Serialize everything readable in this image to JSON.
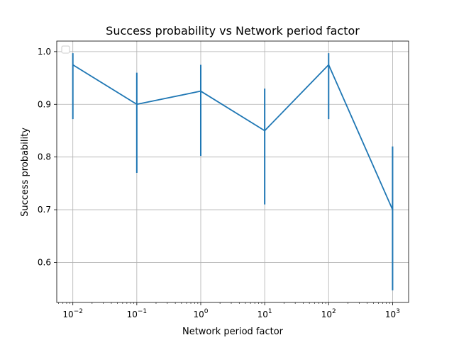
{
  "chart_data": {
    "type": "line",
    "title": "Success probability vs Network period factor",
    "xlabel": "Network period factor",
    "ylabel": "Success probability",
    "xscale": "log",
    "xlim": [
      0.0056,
      1780
    ],
    "ylim": [
      0.524,
      1.02
    ],
    "grid": true,
    "legend": {
      "placement": "top-left",
      "entries": []
    },
    "x_ticks": [
      {
        "base": "10",
        "exp": "−2",
        "value": 0.01
      },
      {
        "base": "10",
        "exp": "−1",
        "value": 0.1
      },
      {
        "base": "10",
        "exp": "0",
        "value": 1
      },
      {
        "base": "10",
        "exp": "1",
        "value": 10
      },
      {
        "base": "10",
        "exp": "2",
        "value": 100
      },
      {
        "base": "10",
        "exp": "3",
        "value": 1000
      }
    ],
    "y_ticks": [
      "0.6",
      "0.7",
      "0.8",
      "0.9",
      "1.0"
    ],
    "color": "#1f77b4",
    "series": [
      {
        "x": [
          0.01,
          0.1,
          1,
          10,
          100,
          1000
        ],
        "y": [
          0.975,
          0.9,
          0.925,
          0.85,
          0.975,
          0.7
        ],
        "err_low": [
          0.872,
          0.77,
          0.802,
          0.71,
          0.872,
          0.547
        ],
        "err_high": [
          0.997,
          0.96,
          0.975,
          0.93,
          0.997,
          0.82
        ]
      }
    ]
  }
}
